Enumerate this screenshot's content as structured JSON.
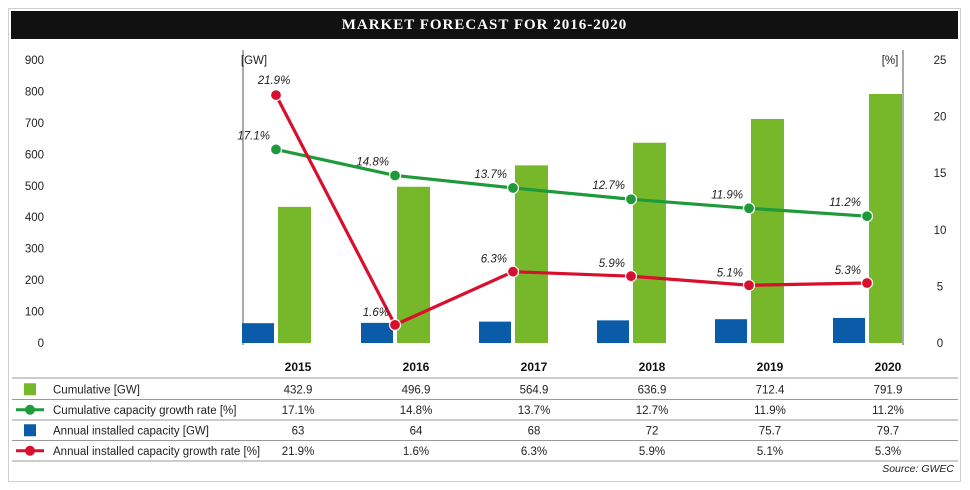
{
  "title": "MARKET FORECAST FOR 2016-2020",
  "source": "Source: GWEC",
  "colors": {
    "cumulative_bar": "#76b82a",
    "annual_bar": "#0b5ca8",
    "cumulative_growth_line": "#1e9a3a",
    "annual_growth_line": "#d8102e",
    "title_bg": "#111111"
  },
  "chart_data": {
    "type": "bar",
    "categories": [
      "2015",
      "2016",
      "2017",
      "2018",
      "2019",
      "2020"
    ],
    "left_axis": {
      "unit": "[GW]",
      "ylim": [
        0,
        900
      ],
      "ticks": [
        "900",
        "800",
        "700",
        "600",
        "500",
        "400",
        "300",
        "200",
        "100",
        "0"
      ]
    },
    "right_axis": {
      "unit": "[%]",
      "ylim": [
        0,
        25
      ],
      "ticks": [
        "25",
        "20",
        "15",
        "10",
        "5",
        "0"
      ]
    },
    "series": [
      {
        "name": "Cumulative [GW]",
        "type": "bar",
        "axis": "left",
        "values": [
          432.9,
          496.9,
          564.9,
          636.9,
          712.4,
          791.9
        ],
        "table_values": [
          "432.9",
          "496.9",
          "564.9",
          "636.9",
          "712.4",
          "791.9"
        ]
      },
      {
        "name": "Cumulative capacity growth rate [%]",
        "type": "line",
        "axis": "right",
        "values": [
          17.1,
          14.8,
          13.7,
          12.7,
          11.9,
          11.2
        ],
        "point_labels": [
          "17.1%",
          "14.8%",
          "13.7%",
          "12.7%",
          "11.9%",
          "11.2%"
        ],
        "table_values": [
          "17.1%",
          "14.8%",
          "13.7%",
          "12.7%",
          "11.9%",
          "11.2%"
        ]
      },
      {
        "name": "Annual installed capacity [GW]",
        "type": "bar",
        "axis": "left",
        "values": [
          63,
          64,
          68,
          72,
          75.7,
          79.7
        ],
        "table_values": [
          "63",
          "64",
          "68",
          "72",
          "75.7",
          "79.7"
        ]
      },
      {
        "name": "Annual installed capacity growth rate [%]",
        "type": "line",
        "axis": "right",
        "values": [
          21.9,
          1.6,
          6.3,
          5.9,
          5.1,
          5.3
        ],
        "point_labels": [
          "21.9%",
          "1.6%",
          "6.3%",
          "5.9%",
          "5.1%",
          "5.3%"
        ],
        "table_values": [
          "21.9%",
          "1.6%",
          "6.3%",
          "5.9%",
          "5.1%",
          "5.3%"
        ]
      }
    ],
    "grid": false,
    "legend": "table-below"
  }
}
